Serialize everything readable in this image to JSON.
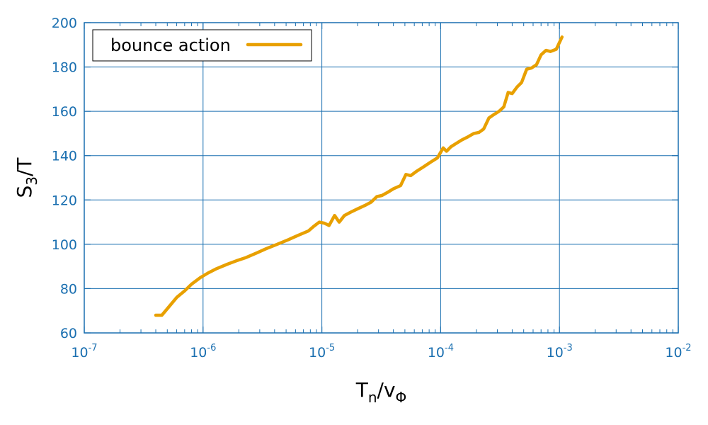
{
  "chart_data": {
    "type": "line",
    "title": "",
    "x_scale": "log",
    "xlim": [
      1e-07,
      0.01
    ],
    "ylim": [
      60,
      200
    ],
    "x_ticks": [
      {
        "base": "10",
        "exp": "-7",
        "value": 1e-07
      },
      {
        "base": "10",
        "exp": "-6",
        "value": 1e-06
      },
      {
        "base": "10",
        "exp": "-5",
        "value": 1e-05
      },
      {
        "base": "10",
        "exp": "-4",
        "value": 0.0001
      },
      {
        "base": "10",
        "exp": "-3",
        "value": 0.001
      },
      {
        "base": "10",
        "exp": "-2",
        "value": 0.01
      }
    ],
    "y_ticks": [
      "60",
      "80",
      "100",
      "120",
      "140",
      "160",
      "180",
      "200"
    ],
    "xlabel": {
      "main": "T",
      "sub": "n",
      "mid": "/v",
      "sub2": "Φ"
    },
    "ylabel": {
      "main": "S",
      "sub": "3",
      "rest": "/T"
    },
    "grid": true,
    "legend_position": "top-left",
    "colors": {
      "axis": "#1a6fb0",
      "series": "#e8a000"
    },
    "series": [
      {
        "name": "bounce action",
        "x": [
          4e-07,
          4.5e-07,
          5.2e-07,
          6e-07,
          7e-07,
          8e-07,
          9.5e-07,
          1.1e-06,
          1.3e-06,
          1.6e-06,
          1.9e-06,
          2.3e-06,
          2.8e-06,
          3.4e-06,
          4.2e-06,
          5.2e-06,
          6.3e-06,
          7.7e-06,
          8.5e-06,
          9.5e-06,
          1.05e-05,
          1.15e-05,
          1.28e-05,
          1.4e-05,
          1.55e-05,
          1.75e-05,
          2e-05,
          2.3e-05,
          2.6e-05,
          2.9e-05,
          3.2e-05,
          3.6e-05,
          4e-05,
          4.6e-05,
          5.1e-05,
          5.6e-05,
          6.3e-05,
          7.2e-05,
          8.2e-05,
          9.4e-05,
          0.000105,
          0.000112,
          0.000122,
          0.000135,
          0.00015,
          0.00017,
          0.00019,
          0.00021,
          0.00023,
          0.000255,
          0.00028,
          0.00031,
          0.00034,
          0.00037,
          0.0004,
          0.00044,
          0.00048,
          0.00053,
          0.00058,
          0.00064,
          0.0007,
          0.00077,
          0.00084,
          0.00094,
          0.00105
        ],
        "y": [
          68,
          68,
          72,
          76,
          79,
          82,
          85,
          87,
          89,
          91,
          92.5,
          94,
          96,
          98,
          100,
          102,
          104,
          106,
          108,
          110,
          109.5,
          108.5,
          113,
          110,
          113,
          114.5,
          116,
          117.5,
          119,
          121.5,
          122,
          123.5,
          125,
          126.5,
          131.5,
          131,
          133,
          135,
          137,
          139,
          143.5,
          142,
          144,
          145.5,
          147,
          148.5,
          150,
          150.5,
          152,
          157,
          158.5,
          160,
          162,
          168.5,
          168,
          171,
          173,
          179,
          179.5,
          181,
          185.5,
          187.5,
          187,
          188,
          193.5
        ]
      }
    ]
  }
}
